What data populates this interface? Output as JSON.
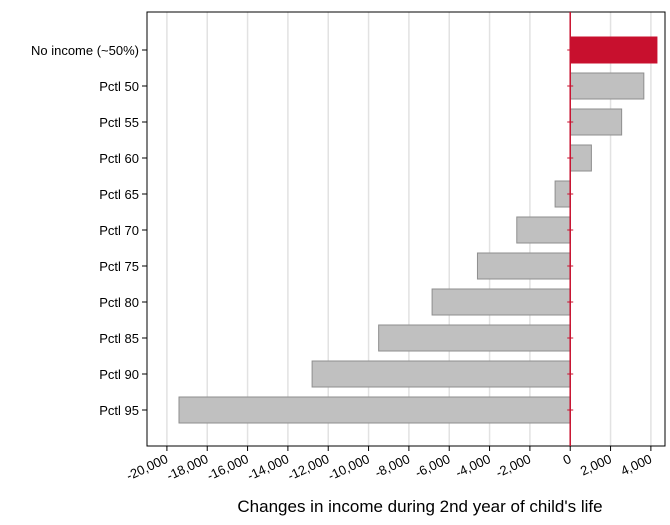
{
  "chart_data": {
    "type": "bar",
    "orientation": "horizontal",
    "title": "",
    "xlabel": "Changes in income during 2nd year of child's life",
    "ylabel": "",
    "categories": [
      "No income (~50%)",
      "Pctl 50",
      "Pctl 55",
      "Pctl 60",
      "Pctl 65",
      "Pctl 70",
      "Pctl 75",
      "Pctl 80",
      "Pctl 85",
      "Pctl 90",
      "Pctl 95"
    ],
    "values": [
      4300,
      3650,
      2550,
      1050,
      -750,
      -2650,
      -4600,
      -6850,
      -9500,
      -12800,
      -19400
    ],
    "xlim": [
      -20987,
      4700
    ],
    "xticks": [
      -20000,
      -18000,
      -16000,
      -14000,
      -12000,
      -10000,
      -8000,
      -6000,
      -4000,
      -2000,
      0,
      2000,
      4000
    ],
    "xtick_labels": [
      "-20,000",
      "-18,000",
      "-16,000",
      "-14,000",
      "-12,000",
      "-10,000",
      "-8,000",
      "-6,000",
      "-4,000",
      "-2,000",
      "0",
      "2,000",
      "4,000"
    ],
    "grid": "vertical",
    "legend": "none",
    "zero_line": true,
    "colors": {
      "highlight": "#c8102e",
      "bar": "#c0c0c0",
      "bar_stroke": "#8e8e8e",
      "zero_line": "#c8102e",
      "grid": "#e2e2e2"
    },
    "highlight_index": 0
  }
}
